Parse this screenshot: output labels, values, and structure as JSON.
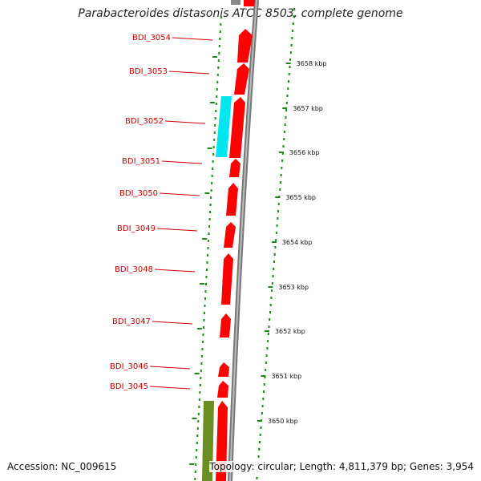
{
  "title": "Parabacteroides distasonis ATCC 8503, complete genome",
  "accession": "Accession: NC_009615",
  "topology": "Topology: circular; Length: 4,811,379 bp; Genes: 3,954",
  "colors": {
    "cds_forward": "#ff0000",
    "backbone": "#888888",
    "rna": "#00e5ee",
    "other_feature": "#6b8e23",
    "ring_dots": "#1a8a1a",
    "label": "#cc0000"
  },
  "gene_labels": [
    "BDI_3054",
    "BDI_3053",
    "BDI_3052",
    "BDI_3051",
    "BDI_3050",
    "BDI_3049",
    "BDI_3048",
    "BDI_3047",
    "BDI_3046",
    "BDI_3045"
  ],
  "kbp_ticks": [
    "3658 kbp",
    "3657 kbp",
    "3656 kbp",
    "3655 kbp",
    "3654 kbp",
    "3653 kbp",
    "3652 kbp",
    "3651 kbp",
    "3650 kbp"
  ]
}
